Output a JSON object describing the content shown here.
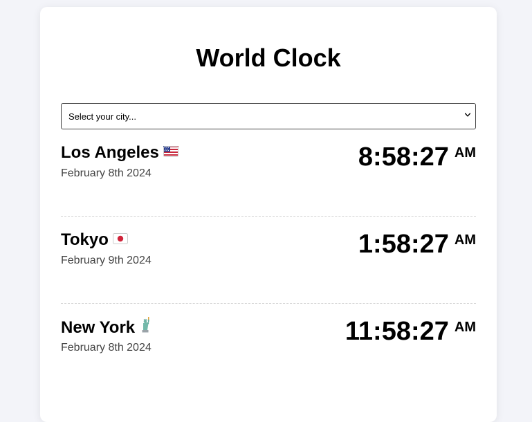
{
  "app": {
    "title": "World Clock"
  },
  "city_select": {
    "selected_label": "Select your city..."
  },
  "clocks": [
    {
      "city": "Los Angeles",
      "flag_icon": "us-flag-icon",
      "date": "February 8th 2024",
      "time": "8:58:27",
      "ampm": "AM"
    },
    {
      "city": "Tokyo",
      "flag_icon": "japan-flag-icon",
      "date": "February 9th 2024",
      "time": "1:58:27",
      "ampm": "AM"
    },
    {
      "city": "New York",
      "flag_icon": "statue-of-liberty-icon",
      "date": "February 8th 2024",
      "time": "11:58:27",
      "ampm": "AM"
    }
  ],
  "colors": {
    "background": "#f3f4f9",
    "card": "#ffffff",
    "text": "#000000",
    "muted_text": "#444444",
    "divider": "#cfcfcf"
  }
}
